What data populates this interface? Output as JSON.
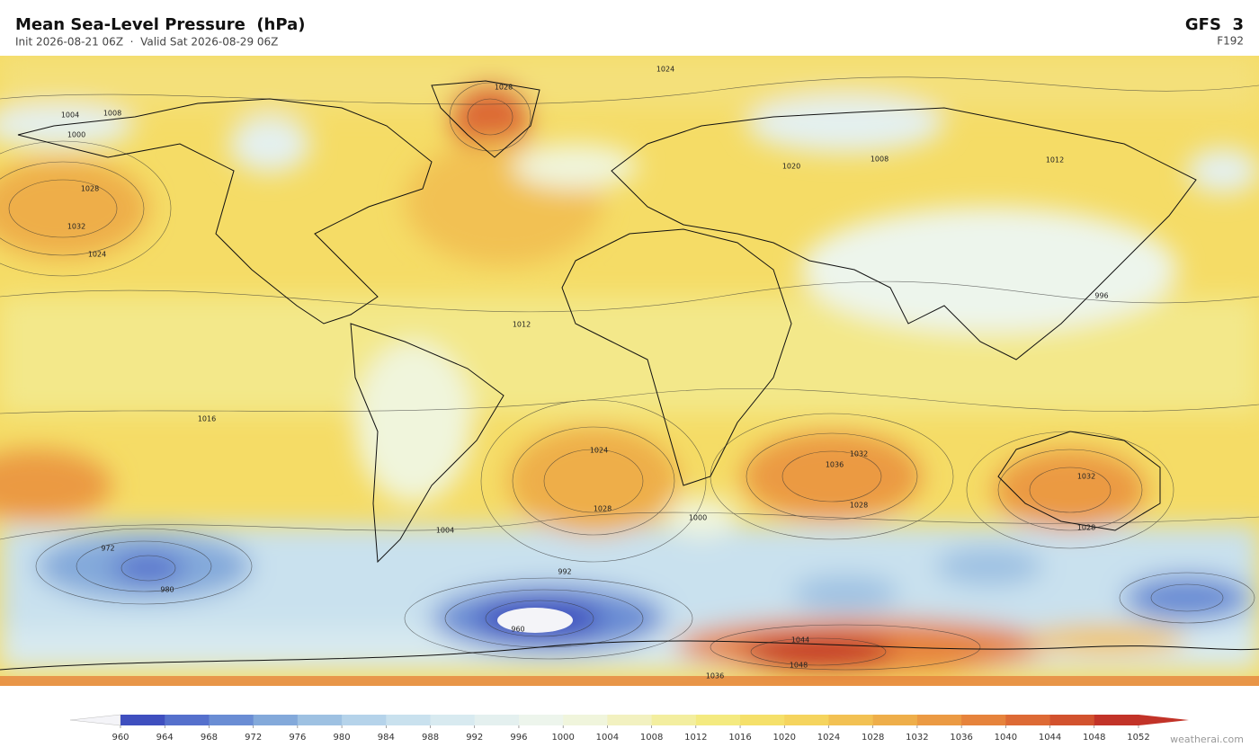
{
  "header": {
    "title": "Mean Sea-Level Pressure  (hPa)",
    "subtitle": "Init 2026-08-21 06Z  ·  Valid Sat 2026-08-29 06Z",
    "model": "GFS  3",
    "forecast_hour": "F192"
  },
  "contour_labels": [
    "1032",
    "1028",
    "1024",
    "1024",
    "1028",
    "1004",
    "1000",
    "1008",
    "1012",
    "1016",
    "1024",
    "1028",
    "1032",
    "1036",
    "1028",
    "1032",
    "1028",
    "1000",
    "1004",
    "992",
    "980",
    "972",
    "960",
    "1044",
    "1048",
    "1036",
    "996",
    "1008",
    "1020",
    "1012"
  ],
  "colorbar": {
    "ticks": [
      960,
      964,
      968,
      972,
      976,
      980,
      984,
      988,
      992,
      996,
      1000,
      1004,
      1008,
      1012,
      1016,
      1020,
      1024,
      1028,
      1032,
      1036,
      1040,
      1044,
      1048,
      1052
    ],
    "colors": [
      "#3f4fbf",
      "#5570cc",
      "#6a8dd4",
      "#83a9da",
      "#9ec1e2",
      "#b5d3ea",
      "#c9e1ee",
      "#d8eaf0",
      "#e4f0ef",
      "#edf5ec",
      "#f0f5dc",
      "#f2f1c0",
      "#f3ee9f",
      "#f4ea80",
      "#f5e06a",
      "#f5d45e",
      "#f2c153",
      "#eeae4a",
      "#eb9a43",
      "#e6833c",
      "#dd6a35",
      "#d2522e",
      "#c23328"
    ],
    "under_color": "#f4f4f8",
    "over_color": "#c23328"
  },
  "footer": {
    "watermark": "weatherai.com"
  }
}
